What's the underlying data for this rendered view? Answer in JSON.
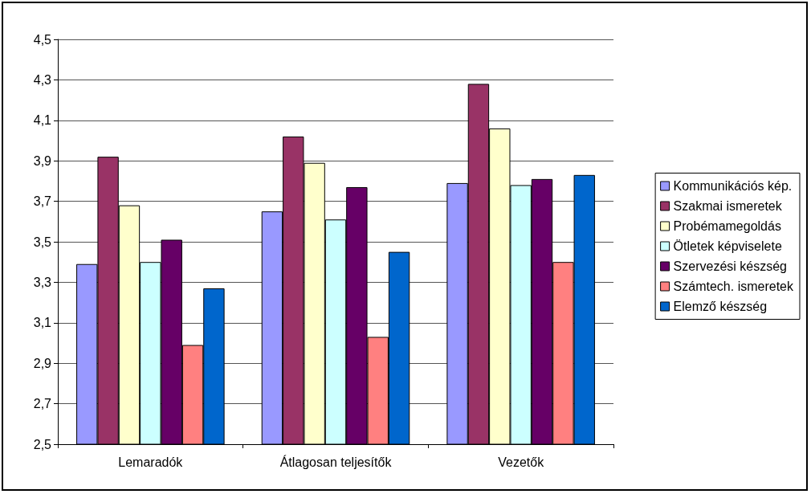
{
  "chart_data": {
    "type": "bar",
    "categories": [
      "Lemaradók",
      "Átlagosan teljesítők",
      "Vezetők"
    ],
    "series": [
      {
        "name": "Kommunikációs kép.",
        "color": "#9999ff",
        "values": [
          3.39,
          3.65,
          3.79
        ]
      },
      {
        "name": "Szakmai ismeretek",
        "color": "#993366",
        "values": [
          3.92,
          4.02,
          4.28
        ]
      },
      {
        "name": "Probémamegoldás",
        "color": "#ffffcc",
        "values": [
          3.68,
          3.89,
          4.06
        ]
      },
      {
        "name": "Ötletek képviselete",
        "color": "#ccffff",
        "values": [
          3.4,
          3.61,
          3.78
        ]
      },
      {
        "name": "Szervezési készség",
        "color": "#660066",
        "values": [
          3.51,
          3.77,
          3.81
        ]
      },
      {
        "name": "Számtech. ismeretek",
        "color": "#ff8080",
        "values": [
          2.99,
          3.03,
          3.4
        ]
      },
      {
        "name": "Elemző készség",
        "color": "#0066cc",
        "values": [
          3.27,
          3.45,
          3.83
        ]
      }
    ],
    "ylim": [
      2.5,
      4.5
    ],
    "yticks": [
      {
        "value": 2.5,
        "label": "2,5"
      },
      {
        "value": 2.7,
        "label": "2,7"
      },
      {
        "value": 2.9,
        "label": "2,9"
      },
      {
        "value": 3.1,
        "label": "3,1"
      },
      {
        "value": 3.3,
        "label": "3,3"
      },
      {
        "value": 3.5,
        "label": "3,5"
      },
      {
        "value": 3.7,
        "label": "3,7"
      },
      {
        "value": 3.9,
        "label": "3,9"
      },
      {
        "value": 4.1,
        "label": "4,1"
      },
      {
        "value": 4.3,
        "label": "4,3"
      },
      {
        "value": 4.5,
        "label": "4,5"
      }
    ],
    "grid": "y",
    "legend": "right"
  }
}
